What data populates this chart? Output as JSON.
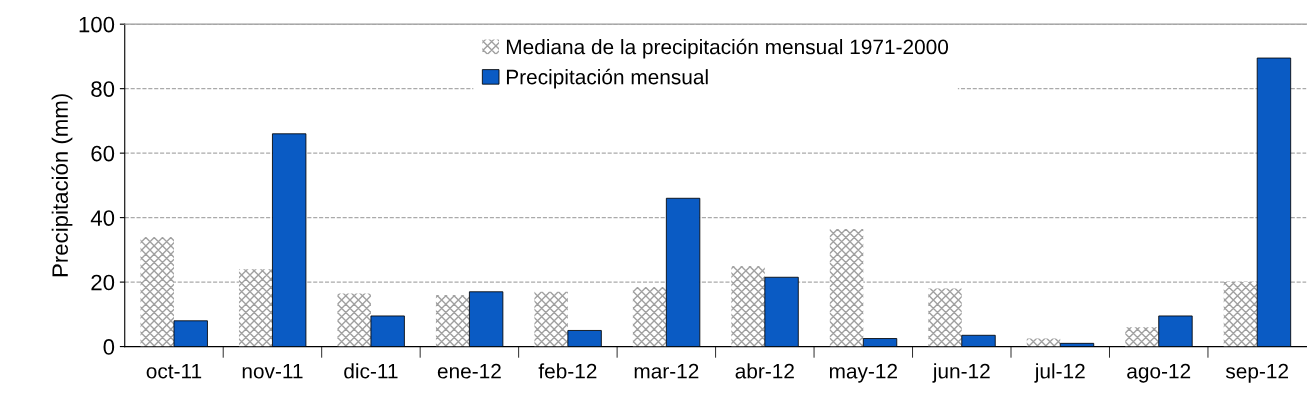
{
  "chart_data": {
    "type": "bar",
    "ylabel": "Precipitación (mm)",
    "categories": [
      "oct-11",
      "nov-11",
      "dic-11",
      "ene-12",
      "feb-12",
      "mar-12",
      "abr-12",
      "may-12",
      "jun-12",
      "jul-12",
      "ago-12",
      "sep-12"
    ],
    "series": [
      {
        "name": "Mediana de la precipitación mensual 1971-2000",
        "color": "#a0a0a0",
        "values": [
          34,
          24,
          16.5,
          16,
          17,
          18.5,
          25,
          36.5,
          18,
          2.5,
          6,
          20
        ]
      },
      {
        "name": "Precipitación mensual",
        "color": "#0a5bc4",
        "values": [
          8,
          66,
          9.5,
          17,
          5,
          46,
          21.5,
          2.5,
          3.5,
          1,
          9.5,
          89.5
        ]
      }
    ],
    "ylim": [
      0,
      100
    ],
    "yticks": [
      0,
      20,
      40,
      60,
      80,
      100
    ],
    "grid": "y",
    "legend": "top"
  }
}
